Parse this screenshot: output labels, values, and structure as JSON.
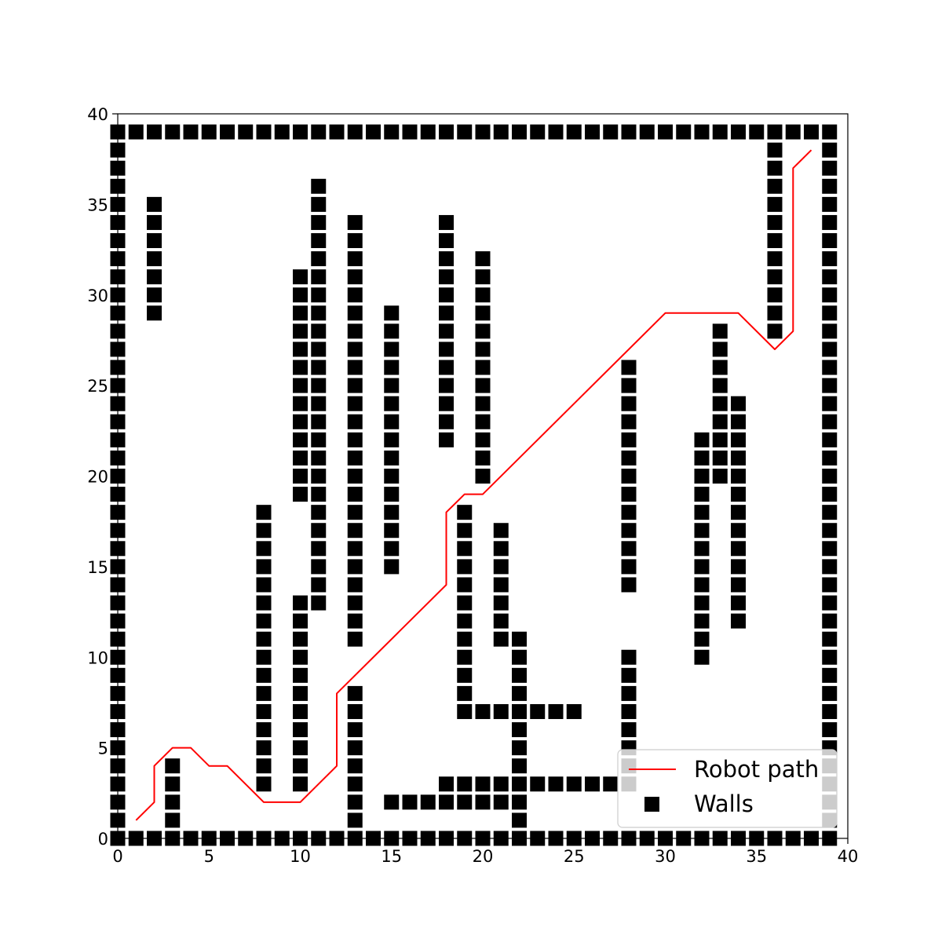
{
  "chart_data": {
    "type": "scatter",
    "title": "",
    "xlabel": "",
    "ylabel": "",
    "xlim": [
      0,
      40
    ],
    "ylim": [
      0,
      40
    ],
    "x_ticks": [
      "0",
      "5",
      "10",
      "15",
      "20",
      "25",
      "30",
      "35",
      "40"
    ],
    "y_ticks": [
      "0",
      "5",
      "10",
      "15",
      "20",
      "25",
      "30",
      "35",
      "40"
    ],
    "grid": false,
    "legend_position": "lower-right",
    "series": [
      {
        "name": "Robot path",
        "kind": "line",
        "color": "#ff0000",
        "points": [
          [
            1,
            1
          ],
          [
            2,
            2
          ],
          [
            2,
            4
          ],
          [
            3,
            5
          ],
          [
            4,
            5
          ],
          [
            5,
            4
          ],
          [
            6,
            4
          ],
          [
            8,
            2
          ],
          [
            10,
            2
          ],
          [
            12,
            4
          ],
          [
            12,
            8
          ],
          [
            18,
            14
          ],
          [
            18,
            18
          ],
          [
            19,
            19
          ],
          [
            20,
            19
          ],
          [
            28,
            27
          ],
          [
            30,
            29
          ],
          [
            34,
            29
          ],
          [
            36,
            27
          ],
          [
            37,
            28
          ],
          [
            37,
            37
          ],
          [
            38,
            38
          ]
        ]
      },
      {
        "name": "Walls",
        "kind": "scatter",
        "marker": "square",
        "color": "#000000",
        "border_cells": {
          "min": 0,
          "max": 39
        },
        "segments": [
          {
            "x": 2,
            "y_from": 29,
            "y_to": 35
          },
          {
            "x": 3,
            "y_from": 1,
            "y_to": 4
          },
          {
            "x": 8,
            "y_from": 3,
            "y_to": 18
          },
          {
            "x": 10,
            "y_from": 3,
            "y_to": 13
          },
          {
            "x": 10,
            "y_from": 19,
            "y_to": 31
          },
          {
            "x": 11,
            "y_from": 13,
            "y_to": 36
          },
          {
            "x": 13,
            "y_from": 1,
            "y_to": 8
          },
          {
            "x": 13,
            "y_from": 11,
            "y_to": 34
          },
          {
            "x": 15,
            "y_from": 15,
            "y_to": 29
          },
          {
            "x": 18,
            "y_from": 22,
            "y_to": 34
          },
          {
            "x": 19,
            "y_from": 7,
            "y_to": 18
          },
          {
            "x": 20,
            "y_from": 20,
            "y_to": 32
          },
          {
            "x": 21,
            "y_from": 11,
            "y_to": 17
          },
          {
            "x": 22,
            "y_from": 1,
            "y_to": 11
          },
          {
            "x": 28,
            "y_from": 14,
            "y_to": 26
          },
          {
            "x": 28,
            "y_from": 3,
            "y_to": 10
          },
          {
            "x": 32,
            "y_from": 10,
            "y_to": 22
          },
          {
            "x": 33,
            "y_from": 20,
            "y_to": 28
          },
          {
            "x": 34,
            "y_from": 12,
            "y_to": 24
          },
          {
            "x": 36,
            "y_from": 28,
            "y_to": 38
          },
          {
            "y": 7,
            "x_from": 19,
            "x_to": 25
          },
          {
            "y": 3,
            "x_from": 18,
            "x_to": 28
          },
          {
            "y": 2,
            "x_from": 15,
            "x_to": 22
          }
        ]
      }
    ]
  }
}
